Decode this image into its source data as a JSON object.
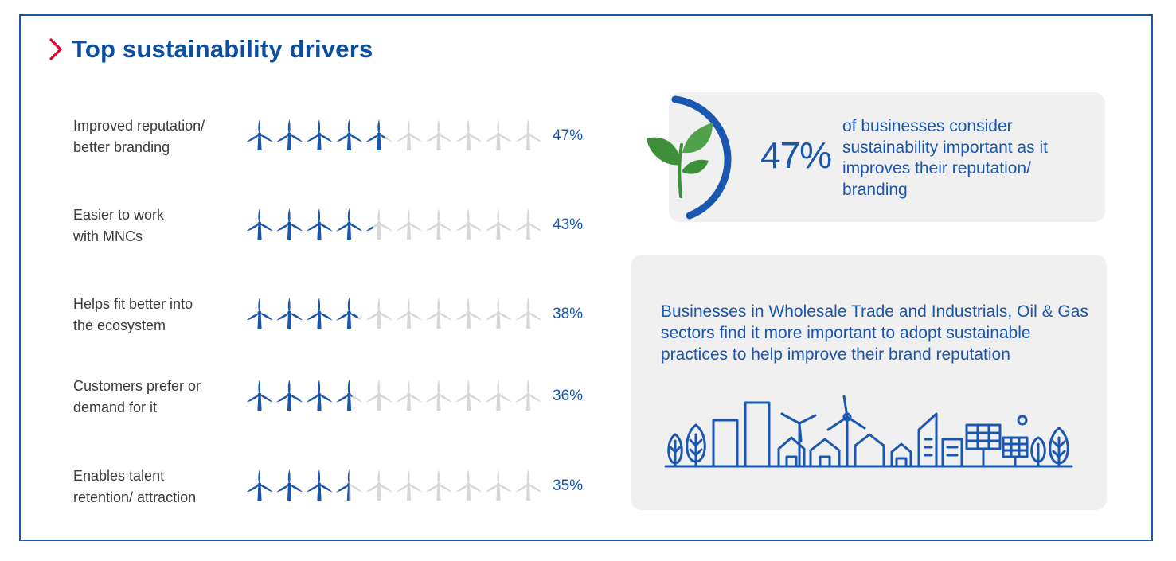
{
  "title": "Top sustainability drivers",
  "colors": {
    "accent_red": "#e4002b",
    "brand_blue": "#1a56ac",
    "turbine_active": "#1a56ac",
    "turbine_inactive": "#d7d7d7",
    "card_bg": "#f0f0f0",
    "leaf_green": "#3d8f3a"
  },
  "chart_data": {
    "type": "bar",
    "units_per_row": 10,
    "categories": [
      [
        "Improved reputation/",
        "better branding"
      ],
      [
        "Easier to work",
        "with MNCs"
      ],
      [
        "Helps fit better into",
        "the ecosystem"
      ],
      [
        "Customers prefer or",
        "demand for it"
      ],
      [
        "Enables talent",
        "retention/ attraction"
      ]
    ],
    "values": [
      47,
      43,
      38,
      36,
      35
    ],
    "value_labels": [
      "47%",
      "43%",
      "38%",
      "36%",
      "35%"
    ]
  },
  "highlight": {
    "icon": "leaf-icon",
    "value": "47%",
    "text": "of businesses consider sustainability important as it improves their reputation/ branding"
  },
  "sector_note": {
    "text": "Businesses in Wholesale Trade and Industrials, Oil & Gas sectors find it more important to adopt sustainable practices to help improve their brand reputation",
    "icon": "city-skyline-icon"
  }
}
